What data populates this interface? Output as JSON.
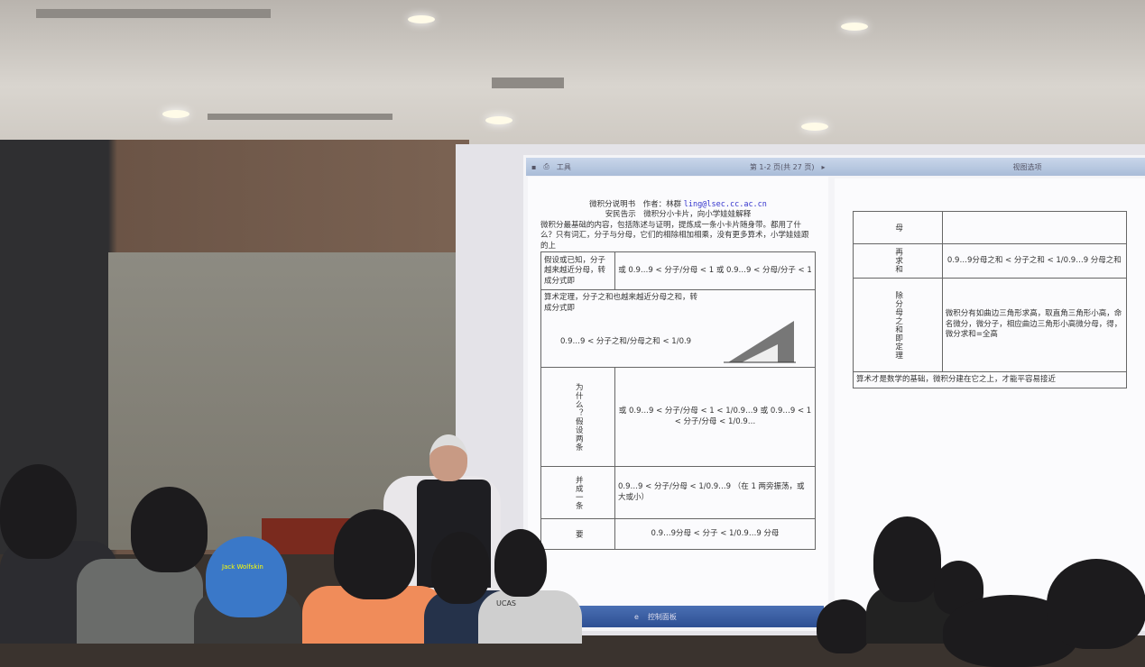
{
  "toolbar": {
    "tools": "工具",
    "page_indicator": "第 1-2 页(共 27 页)",
    "view_options": "视图选项"
  },
  "left_page": {
    "title": "微积分说明书　作者：林群",
    "email": "ling@lsec.cc.ac.cn",
    "subtitle": "安民告示　微积分小卡片，向小学娃娃解释",
    "intro": "微积分最基础的内容，包括陈述与证明，提炼成一条小卡片随身带。都用了什么？只有词汇，分子与分母，它们的相除相加相乘，没有更多算术，小学娃娃跟的上",
    "rows": [
      {
        "label": "假设或已知，分子越来越近分母，转成分式即",
        "content": "或 0.9…9 < 分子/分母 < 1 或 0.9…9 < 分母/分子 < 1"
      },
      {
        "label": "算术定理，分子之和也越来越近分母之和，转成分式即",
        "content": "0.9…9 < 分子之和/分母之和 < 1/0.9"
      },
      {
        "label": "为什么？假设两条",
        "content": "或 0.9…9 < 分子/分母 < 1 < 1/0.9…9 或 0.9…9 < 1 < 分子/分母 < 1/0.9…"
      },
      {
        "label": "并成一条",
        "content": "0.9…9 < 分子/分母 < 1/0.9…9 （在 1 两旁振荡，或大或小）"
      },
      {
        "label": "要",
        "content": "0.9…9分母 < 分子 < 1/0.9…9 分母"
      }
    ]
  },
  "right_page": {
    "rows": [
      {
        "label": "母",
        "content": ""
      },
      {
        "label": "再求和",
        "content": "0.9…9分母之和 < 分子之和 < 1/0.9…9 分母之和"
      },
      {
        "label": "除分母之和即定理",
        "content": "微积分有如曲边三角形求高，取直角三角形小高，命名微分，微分子，相应曲边三角形小高微分母，得，微分求和=全高"
      }
    ],
    "footer": "算术才是数学的基础，微积分建在它之上，才能平容易接近"
  },
  "taskbar": {
    "control_panel": "控制面板"
  },
  "backpack_logo": "Jack Wolfskin",
  "shirt_text": "UCAS"
}
